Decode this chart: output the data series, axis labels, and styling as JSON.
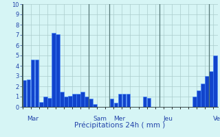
{
  "xlabel": "Précipitations 24h ( mm )",
  "ylim": [
    0,
    10
  ],
  "yticks": [
    0,
    1,
    2,
    3,
    4,
    5,
    6,
    7,
    8,
    9,
    10
  ],
  "background_color": "#d6f5f5",
  "bar_color": "#1144cc",
  "bar_edge_color": "#4488ff",
  "grid_color": "#aacccc",
  "separator_color": "#557777",
  "axis_color": "#334444",
  "tick_color": "#2244aa",
  "xlabel_color": "#2244aa",
  "day_labels": [
    "Mar",
    "Sam",
    "Mer",
    "Jeu",
    "Ven"
  ],
  "day_x_positions": [
    0.5,
    16.5,
    21.5,
    33.5,
    45.5
  ],
  "day_sep_positions": [
    0,
    16,
    21,
    33,
    45
  ],
  "values": [
    2.6,
    2.7,
    4.6,
    4.6,
    0.5,
    1.0,
    0.9,
    7.2,
    7.1,
    1.5,
    1.0,
    1.1,
    1.3,
    1.3,
    1.5,
    1.0,
    0.8,
    0.3,
    0.0,
    0.0,
    0.0,
    0.8,
    0.4,
    1.3,
    1.3,
    1.3,
    0.0,
    0.0,
    0.0,
    1.0,
    0.9,
    0.0,
    0.0,
    0.0,
    0.0,
    0.0,
    0.0,
    0.0,
    0.0,
    0.0,
    0.0,
    1.0,
    1.6,
    2.3,
    3.0,
    3.5,
    5.0
  ]
}
